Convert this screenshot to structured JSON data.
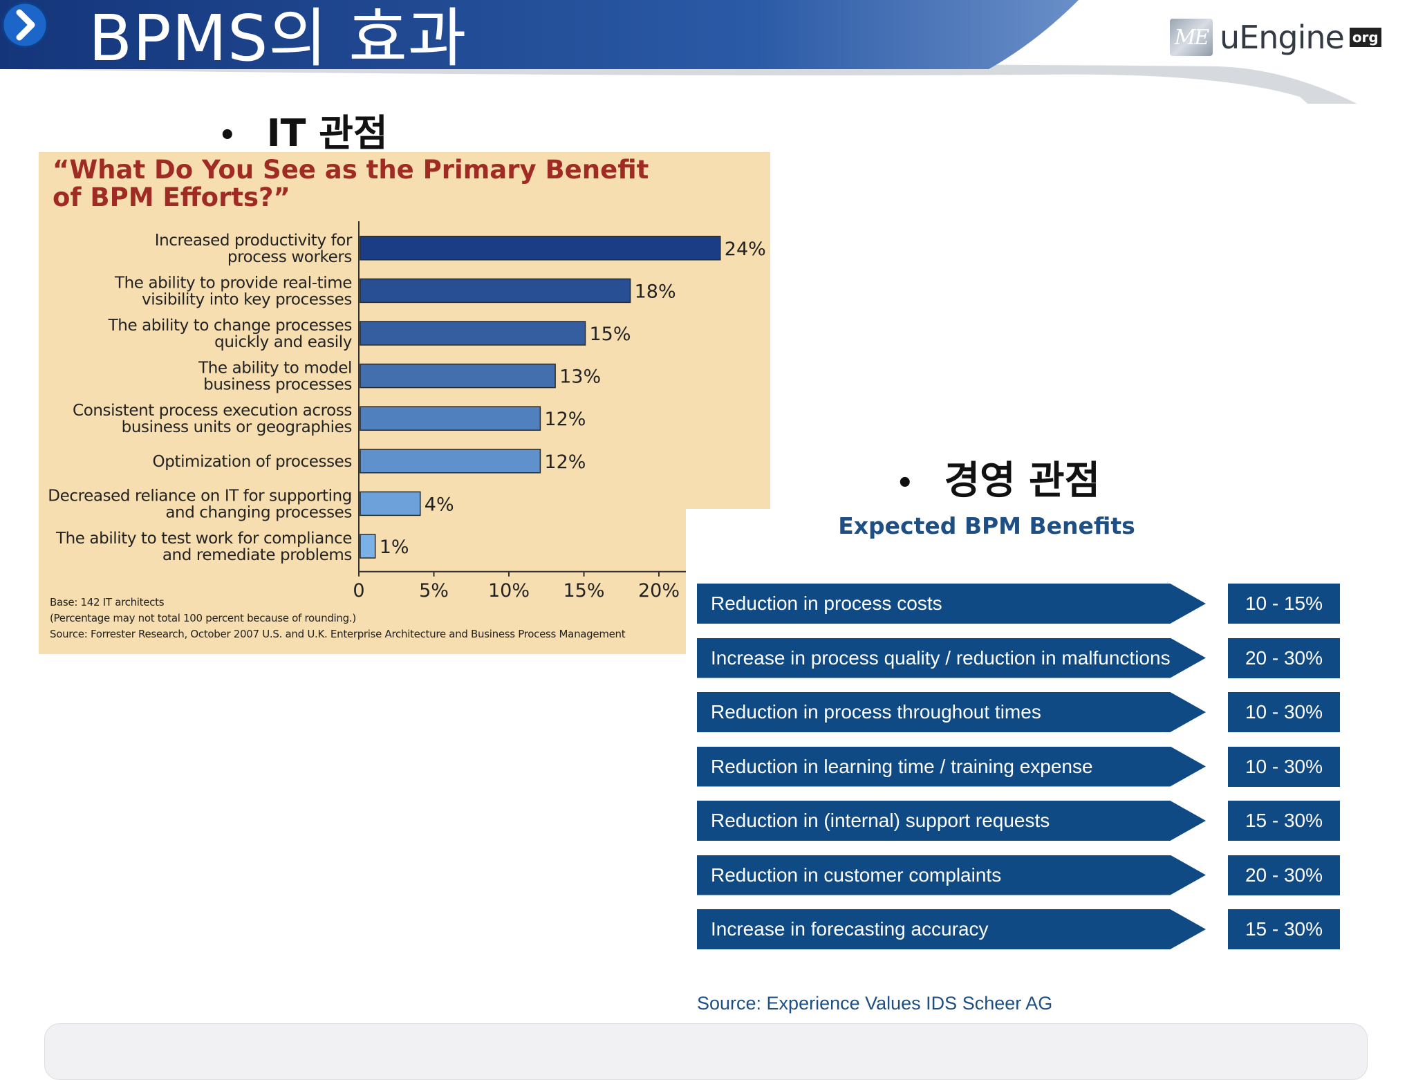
{
  "slide": {
    "title": "BPMS의 효과",
    "logo": {
      "mark": "ME",
      "name": "uEngine",
      "suffix": "org"
    },
    "colors": {
      "header": "#1a3f7c",
      "bar_dark": "#1a3d85",
      "bar_light": "#7ab2e8",
      "arrow": "#104a84",
      "panel": "#f6deb0"
    }
  },
  "section_it": {
    "bullet": "•",
    "label": "IT 관점"
  },
  "section_mgmt": {
    "bullet": "•",
    "label": "경영 관점"
  },
  "chart_data": {
    "type": "bar",
    "orientation": "horizontal",
    "title": "“What Do You See as the Primary Benefit of BPM Efforts?”",
    "categories": [
      [
        "Increased productivity for",
        "process workers"
      ],
      [
        "The ability to provide real-time",
        "visibility into key processes"
      ],
      [
        "The ability to change processes",
        "quickly and easily"
      ],
      [
        "The ability to model",
        "business processes"
      ],
      [
        "Consistent process execution across",
        "business units or geographies"
      ],
      [
        "Optimization of processes"
      ],
      [
        "Decreased reliance on IT for supporting",
        "and changing processes"
      ],
      [
        "The ability to test work for compliance",
        "and remediate problems"
      ]
    ],
    "values": [
      24,
      18,
      15,
      13,
      12,
      12,
      4,
      1
    ],
    "value_labels": [
      "24%",
      "18%",
      "15%",
      "13%",
      "12%",
      "12%",
      "4%",
      "1%"
    ],
    "x_ticks": [
      "0",
      "5%",
      "10%",
      "15%",
      "20%"
    ],
    "xlim": [
      0,
      25
    ],
    "grid": false,
    "notes": [
      "Base: 142 IT architects",
      "(Percentage may not total 100 percent because of rounding.)",
      "Source: Forrester Research, October 2007 U.S. and U.K. Enterprise Architecture and Business Process Management"
    ]
  },
  "benefits": {
    "title": "Expected BPM Benefits",
    "rows": [
      {
        "label": "Reduction in process costs",
        "value": "10 - 15%"
      },
      {
        "label": "Increase in process quality / reduction in malfunctions",
        "value": "20 - 30%"
      },
      {
        "label": "Reduction in process throughout times",
        "value": "10 - 30%"
      },
      {
        "label": "Reduction in learning time / training expense",
        "value": "10 - 30%"
      },
      {
        "label": "Reduction in (internal) support requests",
        "value": "15 - 30%"
      },
      {
        "label": "Reduction in customer complaints",
        "value": "20 - 30%"
      },
      {
        "label": "Increase in forecasting accuracy",
        "value": "15 - 30%"
      }
    ],
    "source": "Source: Experience Values IDS Scheer AG"
  }
}
